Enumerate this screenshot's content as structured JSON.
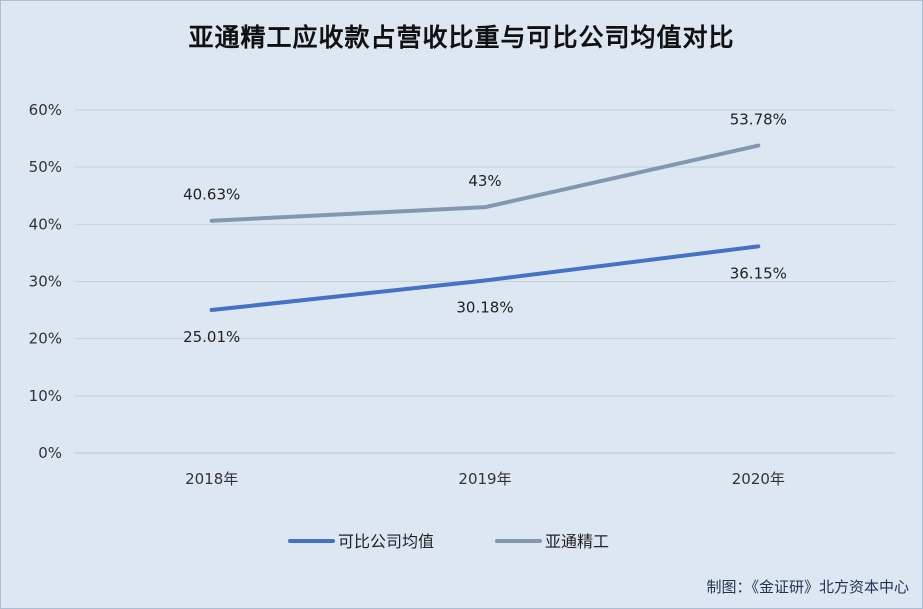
{
  "chart_data": {
    "type": "line",
    "title": "亚通精工应收款占营收比重与可比公司均值对比",
    "categories": [
      "2018年",
      "2019年",
      "2020年"
    ],
    "ylim": [
      0,
      60
    ],
    "yticks": [
      "0%",
      "10%",
      "20%",
      "30%",
      "40%",
      "50%",
      "60%"
    ],
    "grid": true,
    "legend_position": "bottom",
    "series": [
      {
        "name": "可比公司均值",
        "values": [
          25.01,
          30.18,
          36.15
        ],
        "labels": [
          "25.01%",
          "30.18%",
          "36.15%"
        ],
        "color": "#4472c4",
        "label_position": "below"
      },
      {
        "name": "亚通精工",
        "values": [
          40.63,
          43,
          53.78
        ],
        "labels": [
          "40.63%",
          "43%",
          "53.78%"
        ],
        "color": "#8497b0",
        "label_position": "above"
      }
    ]
  },
  "footer": "制图：《金证研》北方资本中心"
}
